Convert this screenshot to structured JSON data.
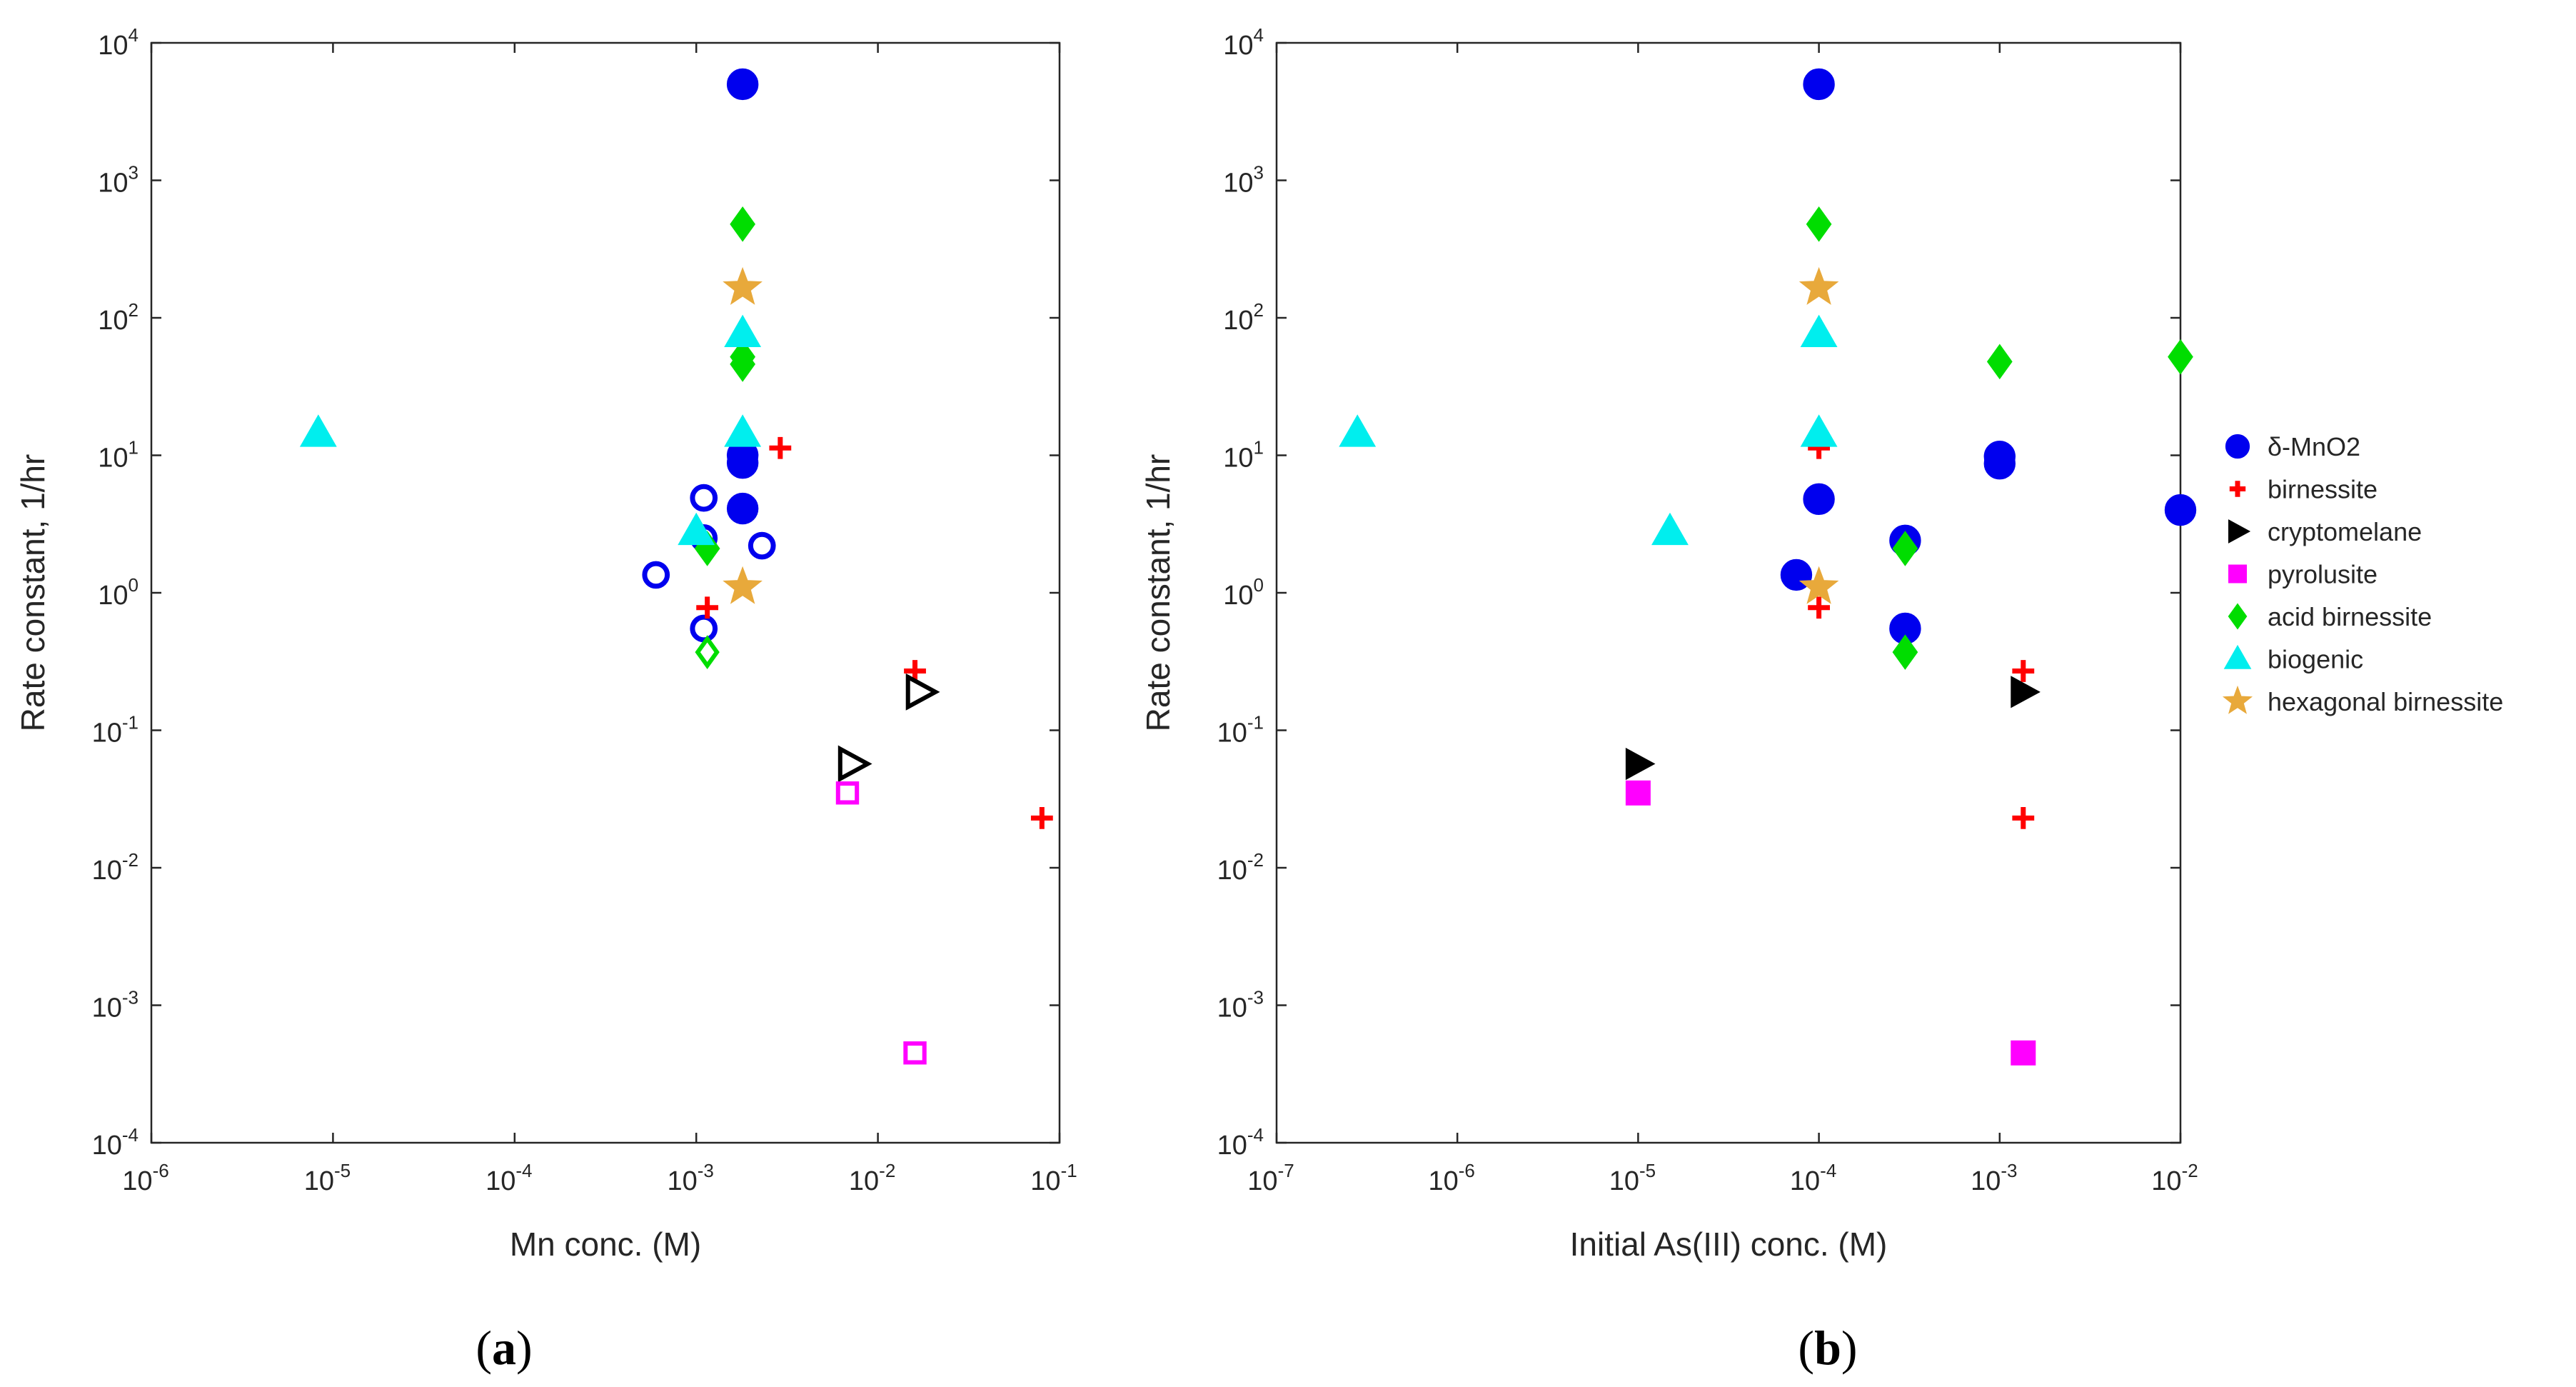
{
  "figure": {
    "panel_a_label": {
      "open": "(",
      "letter": "a",
      "close": ")"
    },
    "panel_b_label": {
      "open": "(",
      "letter": "b",
      "close": ")"
    }
  },
  "chart_data": [
    {
      "type": "scatter",
      "panel": "a",
      "xscale": "log",
      "yscale": "log",
      "xlabel": "Mn conc. (M)",
      "ylabel": "Rate constant, 1/hr",
      "xlim": [
        1e-06,
        0.1
      ],
      "ylim": [
        0.0001,
        10000.0
      ],
      "xticks": [
        -6,
        -5,
        -4,
        -3,
        -2,
        -1
      ],
      "yticks": [
        -4,
        -3,
        -2,
        -1,
        0,
        1,
        2,
        3,
        4
      ],
      "tick_base": "10",
      "legend": "none",
      "series": [
        {
          "name": "δ-MnO2",
          "marker": "circle",
          "color": "#0000ee",
          "filled": true,
          "x": [
            0.0018,
            0.0018,
            0.0018,
            0.0018
          ],
          "y": [
            5000,
            10,
            8.8,
            4.1
          ]
        },
        {
          "name": "δ-MnO2 (open)",
          "marker": "circle",
          "color": "#0000ee",
          "filled": false,
          "x": [
            0.0011,
            0.0011,
            0.0011,
            0.0006,
            0.0023
          ],
          "y": [
            4.9,
            2.5,
            0.55,
            1.35,
            2.2
          ]
        },
        {
          "name": "birnessite",
          "marker": "plus",
          "color": "#ff0000",
          "filled": true,
          "x": [
            0.0029,
            0.00115,
            0.016,
            0.08
          ],
          "y": [
            11.3,
            0.78,
            0.27,
            0.023
          ]
        },
        {
          "name": "cryptomelane",
          "marker": "triangle-right",
          "color": "#000000",
          "filled": false,
          "x": [
            0.0072,
            0.017
          ],
          "y": [
            0.057,
            0.19
          ]
        },
        {
          "name": "pyrolusite",
          "marker": "square",
          "color": "#ff00ff",
          "filled": false,
          "x": [
            0.0068,
            0.016
          ],
          "y": [
            0.035,
            0.00045
          ]
        },
        {
          "name": "acid birnessite",
          "marker": "diamond",
          "color": "#00dd00",
          "filled": true,
          "x": [
            0.0018,
            0.0018,
            0.0018,
            0.00115
          ],
          "y": [
            480,
            52,
            46,
            2.1
          ]
        },
        {
          "name": "acid birnessite (open)",
          "marker": "diamond",
          "color": "#00dd00",
          "filled": false,
          "x": [
            0.00115
          ],
          "y": [
            0.37
          ]
        },
        {
          "name": "biogenic",
          "marker": "triangle-up",
          "color": "#00eeee",
          "filled": true,
          "x": [
            8.3e-06,
            0.0018,
            0.0018,
            0.001
          ],
          "y": [
            14.5,
            77,
            14.5,
            2.8
          ]
        },
        {
          "name": "hexagonal birnessite",
          "marker": "star",
          "color": "#e8a93b",
          "filled": true,
          "x": [
            0.0018,
            0.0018
          ],
          "y": [
            165,
            1.1
          ]
        }
      ]
    },
    {
      "type": "scatter",
      "panel": "b",
      "xscale": "log",
      "yscale": "log",
      "xlabel": "Initial As(III) conc. (M)",
      "ylabel": "Rate constant, 1/hr",
      "xlim": [
        1e-07,
        0.01
      ],
      "ylim": [
        0.0001,
        10000.0
      ],
      "xticks": [
        -7,
        -6,
        -5,
        -4,
        -3,
        -2
      ],
      "yticks": [
        -4,
        -3,
        -2,
        -1,
        0,
        1,
        2,
        3,
        4
      ],
      "tick_base": "10",
      "legend": "outside-right",
      "series": [
        {
          "name": "δ-MnO2",
          "marker": "circle",
          "color": "#0000ee",
          "filled": true,
          "x": [
            0.0001,
            0.0001,
            7.5e-05,
            0.0003,
            0.0003,
            0.001,
            0.001,
            0.01
          ],
          "y": [
            5000,
            4.8,
            1.35,
            2.4,
            0.55,
            9.8,
            8.7,
            4.0
          ]
        },
        {
          "name": "birnessite",
          "marker": "plus",
          "color": "#ff0000",
          "filled": true,
          "x": [
            0.0001,
            0.0001,
            0.00135,
            0.00135
          ],
          "y": [
            11.3,
            0.78,
            0.27,
            0.023
          ]
        },
        {
          "name": "cryptomelane",
          "marker": "triangle-right",
          "color": "#000000",
          "filled": true,
          "x": [
            1e-05,
            0.00135
          ],
          "y": [
            0.057,
            0.19
          ]
        },
        {
          "name": "pyrolusite",
          "marker": "square",
          "color": "#ff00ff",
          "filled": true,
          "x": [
            1e-05,
            0.00135
          ],
          "y": [
            0.035,
            0.00045
          ]
        },
        {
          "name": "acid birnessite",
          "marker": "diamond",
          "color": "#00dd00",
          "filled": true,
          "x": [
            0.0001,
            0.001,
            0.01,
            0.0003,
            0.0003
          ],
          "y": [
            480,
            48,
            52,
            2.1,
            0.37
          ]
        },
        {
          "name": "biogenic",
          "marker": "triangle-up",
          "color": "#00eeee",
          "filled": true,
          "x": [
            2.8e-07,
            1.5e-05,
            0.0001,
            0.0001
          ],
          "y": [
            14.5,
            2.8,
            77,
            14.5
          ]
        },
        {
          "name": "hexagonal birnessite",
          "marker": "star",
          "color": "#e8a93b",
          "filled": true,
          "x": [
            0.0001,
            0.0001
          ],
          "y": [
            165,
            1.1
          ]
        }
      ]
    }
  ]
}
